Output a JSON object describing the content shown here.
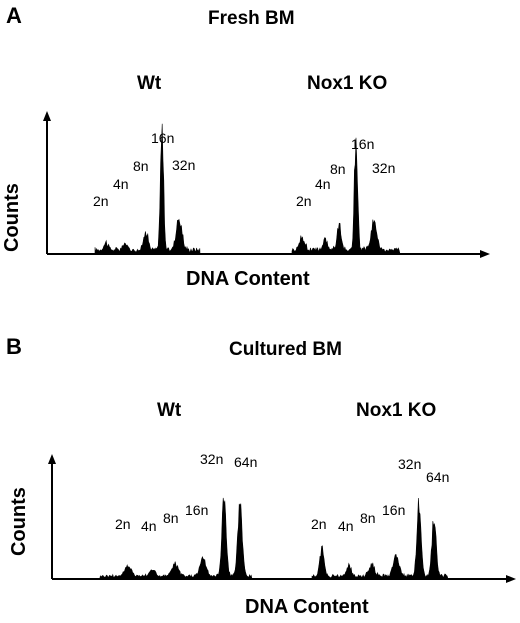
{
  "chart_data": [
    {
      "panel_letter": "A",
      "title": "Fresh BM",
      "type": "area",
      "xlabel": "DNA Content",
      "ylabel": "Counts",
      "groups": [
        {
          "name": "Wt",
          "peak_labels": [
            "2n",
            "4n",
            "8n",
            "16n",
            "32n"
          ],
          "relative_heights": [
            0.06,
            0.05,
            0.15,
            0.93,
            0.24
          ]
        },
        {
          "name": "Nox1 KO",
          "peak_labels": [
            "2n",
            "4n",
            "8n",
            "16n",
            "32n"
          ],
          "relative_heights": [
            0.09,
            0.08,
            0.18,
            0.9,
            0.22
          ]
        }
      ]
    },
    {
      "panel_letter": "B",
      "title": "Cultured BM",
      "type": "area",
      "xlabel": "DNA Content",
      "ylabel": "Counts",
      "groups": [
        {
          "name": "Wt",
          "peak_labels": [
            "2n",
            "4n",
            "8n",
            "16n",
            "32n",
            "64n"
          ],
          "relative_heights": [
            0.1,
            0.07,
            0.14,
            0.22,
            0.83,
            0.8
          ]
        },
        {
          "name": "Nox1 KO",
          "peak_labels": [
            "2n",
            "4n",
            "8n",
            "16n",
            "32n",
            "64n"
          ],
          "relative_heights": [
            0.3,
            0.12,
            0.12,
            0.22,
            0.76,
            0.6
          ]
        }
      ]
    }
  ],
  "colors": {
    "histogram": "#000000",
    "axis": "#000000"
  }
}
